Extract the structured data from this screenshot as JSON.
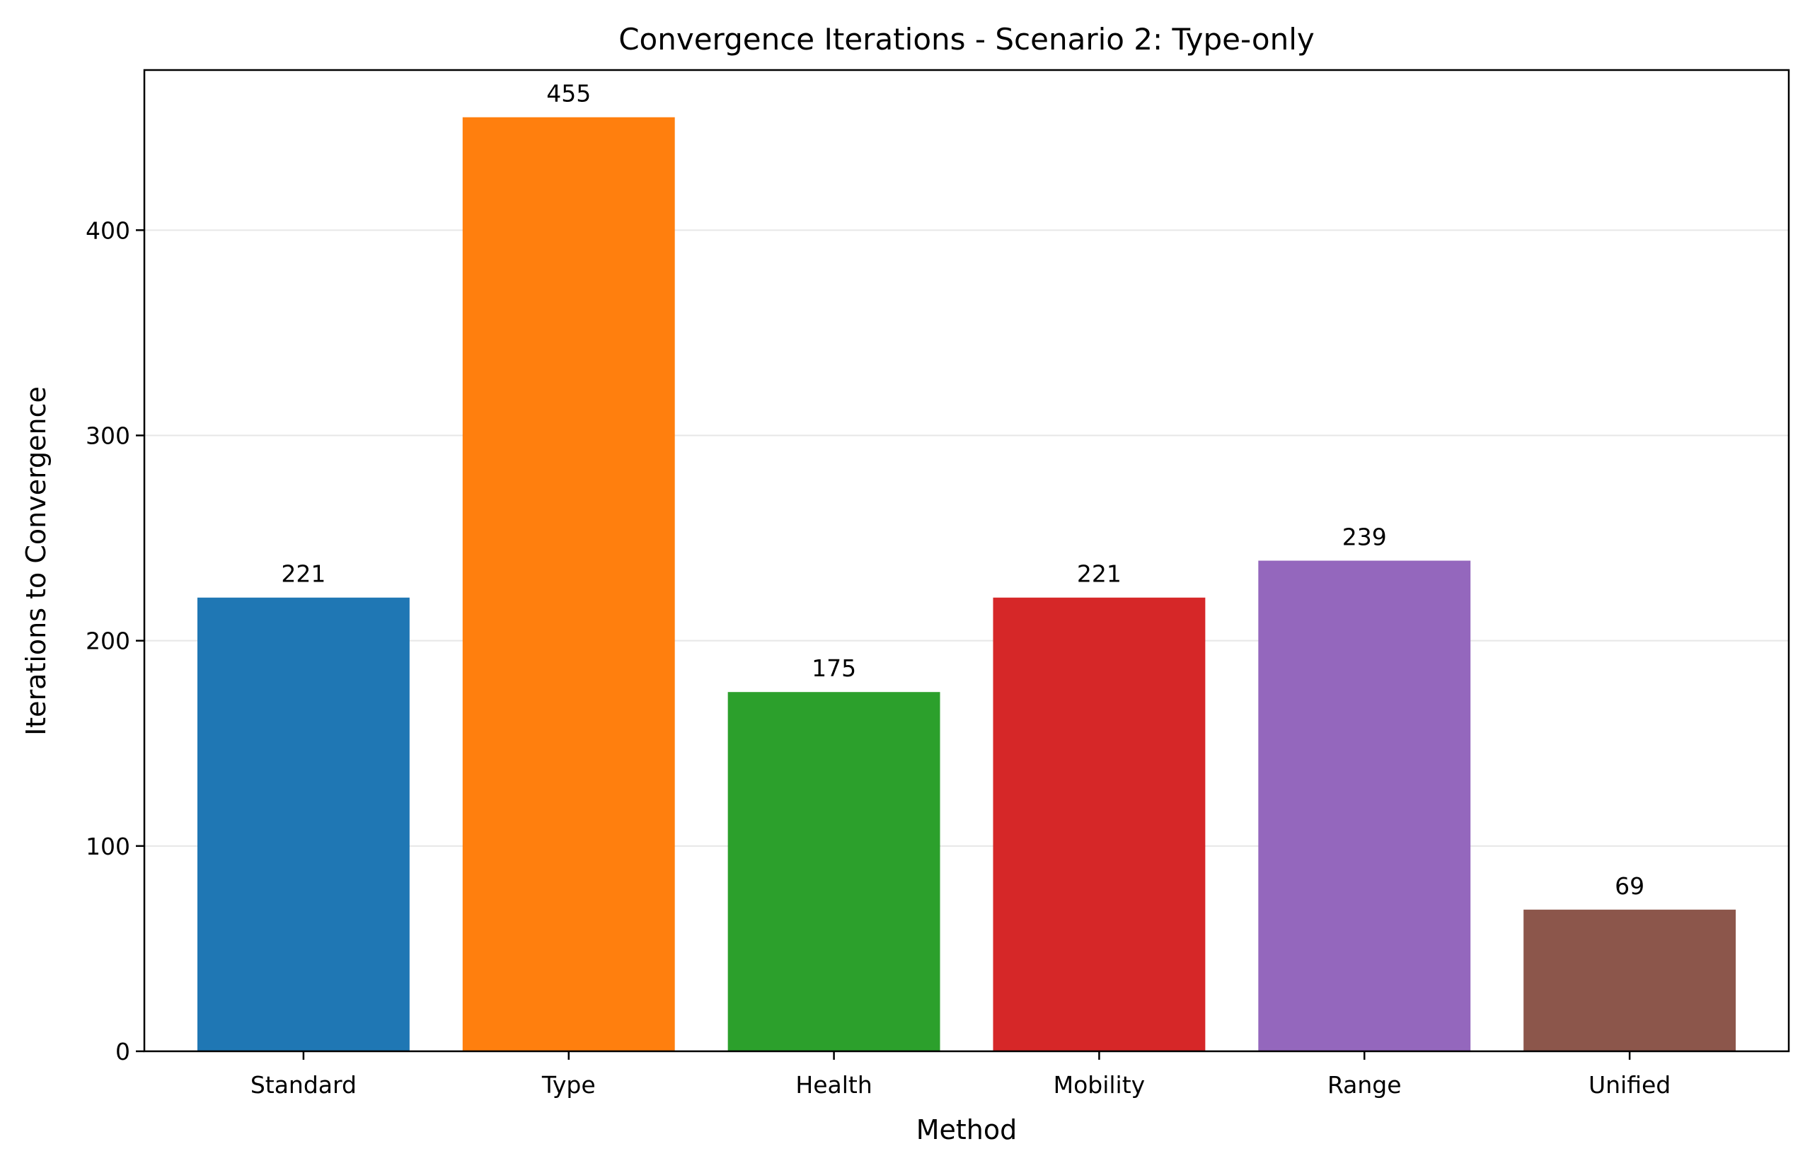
{
  "chart_data": {
    "type": "bar",
    "title": "Convergence Iterations - Scenario 2: Type-only",
    "xlabel": "Method",
    "ylabel": "Iterations to Convergence",
    "categories": [
      "Standard",
      "Type",
      "Health",
      "Mobility",
      "Range",
      "Unified"
    ],
    "values": [
      221,
      455,
      175,
      221,
      239,
      69
    ],
    "data_labels": [
      "221",
      "455",
      "175",
      "221",
      "239",
      "69"
    ],
    "colors": [
      "#1f77b4",
      "#ff7f0e",
      "#2ca02c",
      "#d62728",
      "#9467bd",
      "#8c564b"
    ],
    "ylim": [
      0,
      478
    ],
    "yticks": [
      0,
      100,
      200,
      300,
      400
    ],
    "ytick_labels": [
      "0",
      "100",
      "200",
      "300",
      "400"
    ],
    "grid": "horizontal",
    "legend": "none"
  }
}
